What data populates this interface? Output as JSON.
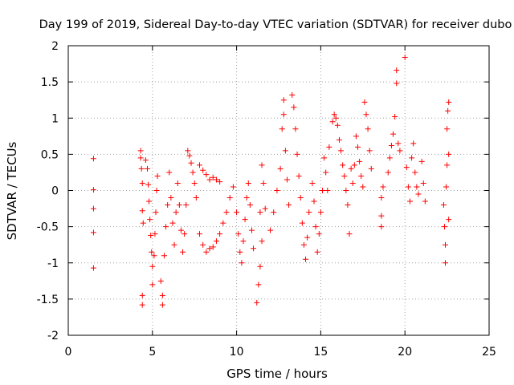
{
  "chart_data": {
    "type": "scatter",
    "title": "Day 199 of 2019, Sidereal Day-to-day VTEC variation (SDTVAR) for receiver dubo",
    "xlabel": "GPS time / hours",
    "ylabel": "SDTVAR / TECUs",
    "xlim": [
      0,
      25
    ],
    "ylim": [
      -2,
      2
    ],
    "xticks": [
      0,
      5,
      10,
      15,
      20,
      25
    ],
    "yticks": [
      -2,
      -1.5,
      -1,
      -0.5,
      0,
      0.5,
      1,
      1.5,
      2
    ],
    "xtick_labels": [
      "0",
      "5",
      "10",
      "15",
      "20",
      "25"
    ],
    "ytick_labels": [
      "-2",
      "-1.5",
      "-1",
      "-0.5",
      "0",
      "0.5",
      "1",
      "1.5",
      "2"
    ],
    "grid": true,
    "legend": "none",
    "marker": "+",
    "series": [
      {
        "name": "SDTVAR",
        "color": "#ff0000",
        "points": [
          [
            1.5,
            0.44
          ],
          [
            1.5,
            0.01
          ],
          [
            1.5,
            -0.25
          ],
          [
            1.5,
            -0.58
          ],
          [
            1.5,
            -1.07
          ],
          [
            4.3,
            0.55
          ],
          [
            4.3,
            0.45
          ],
          [
            4.35,
            0.3
          ],
          [
            4.4,
            0.1
          ],
          [
            4.4,
            -0.28
          ],
          [
            4.45,
            -0.45
          ],
          [
            4.4,
            -1.45
          ],
          [
            4.4,
            -1.58
          ],
          [
            4.6,
            0.42
          ],
          [
            4.7,
            0.3
          ],
          [
            4.75,
            0.08
          ],
          [
            4.8,
            -0.15
          ],
          [
            4.85,
            -0.4
          ],
          [
            4.9,
            -0.62
          ],
          [
            4.95,
            -0.85
          ],
          [
            5.0,
            -1.05
          ],
          [
            5.0,
            -1.3
          ],
          [
            5.1,
            -0.9
          ],
          [
            5.15,
            -0.6
          ],
          [
            5.2,
            -0.3
          ],
          [
            5.25,
            0.0
          ],
          [
            5.3,
            0.2
          ],
          [
            5.5,
            -1.25
          ],
          [
            5.6,
            -1.45
          ],
          [
            5.6,
            -1.58
          ],
          [
            5.7,
            -0.9
          ],
          [
            5.8,
            -0.5
          ],
          [
            5.9,
            -0.2
          ],
          [
            6.0,
            0.25
          ],
          [
            6.1,
            -0.1
          ],
          [
            6.2,
            -0.45
          ],
          [
            6.3,
            -0.75
          ],
          [
            6.4,
            -0.3
          ],
          [
            6.5,
            0.1
          ],
          [
            6.6,
            -0.2
          ],
          [
            6.7,
            -0.55
          ],
          [
            6.8,
            -0.85
          ],
          [
            6.9,
            -0.6
          ],
          [
            7.0,
            -0.2
          ],
          [
            7.1,
            0.55
          ],
          [
            7.2,
            0.48
          ],
          [
            7.3,
            0.38
          ],
          [
            7.4,
            0.25
          ],
          [
            7.5,
            0.1
          ],
          [
            7.6,
            -0.1
          ],
          [
            7.8,
            0.35
          ],
          [
            8.0,
            0.28
          ],
          [
            8.2,
            0.22
          ],
          [
            8.4,
            0.15
          ],
          [
            8.6,
            0.18
          ],
          [
            8.8,
            0.15
          ],
          [
            9.0,
            0.12
          ],
          [
            7.8,
            -0.6
          ],
          [
            8.0,
            -0.75
          ],
          [
            8.2,
            -0.85
          ],
          [
            8.4,
            -0.8
          ],
          [
            8.6,
            -0.78
          ],
          [
            8.8,
            -0.7
          ],
          [
            9.0,
            -0.6
          ],
          [
            9.2,
            -0.45
          ],
          [
            9.4,
            -0.3
          ],
          [
            9.6,
            -0.1
          ],
          [
            9.8,
            0.05
          ],
          [
            10.0,
            -0.3
          ],
          [
            10.1,
            -0.6
          ],
          [
            10.2,
            -0.85
          ],
          [
            10.3,
            -1.0
          ],
          [
            10.4,
            -0.7
          ],
          [
            10.5,
            -0.4
          ],
          [
            10.6,
            -0.1
          ],
          [
            10.7,
            0.1
          ],
          [
            10.8,
            -0.2
          ],
          [
            10.9,
            -0.55
          ],
          [
            11.0,
            -0.8
          ],
          [
            11.2,
            -1.55
          ],
          [
            11.3,
            -1.3
          ],
          [
            11.4,
            -1.05
          ],
          [
            11.5,
            -0.7
          ],
          [
            11.4,
            -0.3
          ],
          [
            11.5,
            0.35
          ],
          [
            11.6,
            0.1
          ],
          [
            11.7,
            -0.25
          ],
          [
            12.0,
            -0.55
          ],
          [
            12.2,
            -0.3
          ],
          [
            12.4,
            0.0
          ],
          [
            12.6,
            0.3
          ],
          [
            12.7,
            0.85
          ],
          [
            12.8,
            1.05
          ],
          [
            12.8,
            1.25
          ],
          [
            12.9,
            0.55
          ],
          [
            13.0,
            0.15
          ],
          [
            13.1,
            -0.2
          ],
          [
            13.3,
            1.32
          ],
          [
            13.4,
            1.15
          ],
          [
            13.5,
            0.85
          ],
          [
            13.6,
            0.5
          ],
          [
            13.7,
            0.2
          ],
          [
            13.8,
            -0.1
          ],
          [
            13.9,
            -0.45
          ],
          [
            14.0,
            -0.75
          ],
          [
            14.1,
            -0.95
          ],
          [
            14.2,
            -0.65
          ],
          [
            14.3,
            -0.3
          ],
          [
            14.5,
            0.1
          ],
          [
            14.6,
            -0.15
          ],
          [
            14.7,
            -0.5
          ],
          [
            14.8,
            -0.85
          ],
          [
            14.9,
            -0.6
          ],
          [
            15.0,
            -0.3
          ],
          [
            15.1,
            0.0
          ],
          [
            15.2,
            0.45
          ],
          [
            15.3,
            0.25
          ],
          [
            15.4,
            0.0
          ],
          [
            15.5,
            0.6
          ],
          [
            15.7,
            0.95
          ],
          [
            15.8,
            1.05
          ],
          [
            15.9,
            1.0
          ],
          [
            16.0,
            0.9
          ],
          [
            16.1,
            0.7
          ],
          [
            16.2,
            0.55
          ],
          [
            16.3,
            0.35
          ],
          [
            16.4,
            0.2
          ],
          [
            16.5,
            0.0
          ],
          [
            16.6,
            -0.2
          ],
          [
            16.7,
            -0.6
          ],
          [
            16.8,
            0.3
          ],
          [
            16.9,
            0.1
          ],
          [
            17.0,
            0.35
          ],
          [
            17.1,
            0.75
          ],
          [
            17.2,
            0.6
          ],
          [
            17.3,
            0.4
          ],
          [
            17.4,
            0.2
          ],
          [
            17.5,
            0.05
          ],
          [
            17.6,
            1.22
          ],
          [
            17.7,
            1.05
          ],
          [
            17.8,
            0.85
          ],
          [
            17.9,
            0.55
          ],
          [
            18.0,
            0.3
          ],
          [
            18.6,
            -0.1
          ],
          [
            18.6,
            -0.35
          ],
          [
            18.6,
            -0.5
          ],
          [
            18.7,
            0.05
          ],
          [
            19.0,
            0.25
          ],
          [
            19.1,
            0.45
          ],
          [
            19.2,
            0.62
          ],
          [
            19.3,
            0.78
          ],
          [
            19.4,
            1.02
          ],
          [
            19.5,
            1.48
          ],
          [
            19.5,
            1.66
          ],
          [
            19.6,
            0.65
          ],
          [
            19.7,
            0.55
          ],
          [
            20.0,
            1.84
          ],
          [
            20.1,
            0.32
          ],
          [
            20.2,
            0.05
          ],
          [
            20.3,
            -0.15
          ],
          [
            20.4,
            0.45
          ],
          [
            20.5,
            0.65
          ],
          [
            20.6,
            0.25
          ],
          [
            20.7,
            0.05
          ],
          [
            20.8,
            -0.05
          ],
          [
            21.0,
            0.4
          ],
          [
            21.1,
            0.1
          ],
          [
            21.2,
            -0.15
          ],
          [
            22.3,
            -0.2
          ],
          [
            22.35,
            -0.5
          ],
          [
            22.4,
            -0.75
          ],
          [
            22.4,
            -1.0
          ],
          [
            22.45,
            0.05
          ],
          [
            22.5,
            0.35
          ],
          [
            22.5,
            0.85
          ],
          [
            22.55,
            1.1
          ],
          [
            22.6,
            1.22
          ],
          [
            22.6,
            0.5
          ],
          [
            22.6,
            -0.4
          ]
        ]
      }
    ]
  }
}
